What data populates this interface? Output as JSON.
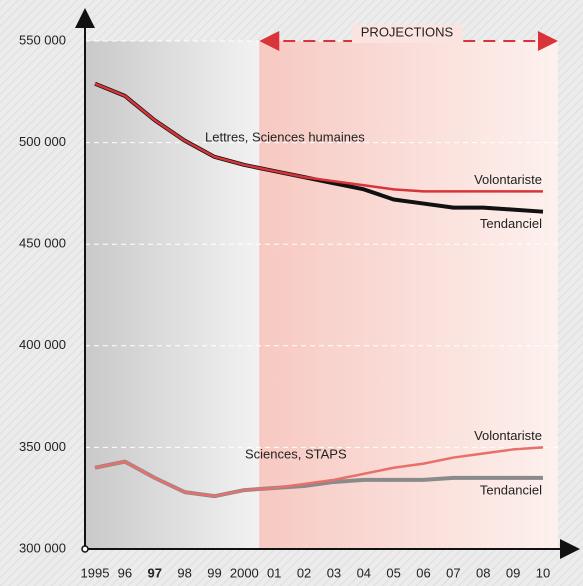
{
  "chart_data": {
    "type": "line",
    "categories": [
      "1995",
      "96",
      "97",
      "98",
      "99",
      "2000",
      "01",
      "02",
      "03",
      "04",
      "05",
      "06",
      "07",
      "08",
      "09",
      "10"
    ],
    "emphasized_category": 2,
    "ylim": [
      300000,
      550000
    ],
    "yticks": [
      {
        "value": 300000,
        "label": "300 000"
      },
      {
        "value": 350000,
        "label": "350 000"
      },
      {
        "value": 400000,
        "label": "400 000"
      },
      {
        "value": 450000,
        "label": "450 000"
      },
      {
        "value": 500000,
        "label": "500 000"
      },
      {
        "value": 550000,
        "label": "550 000"
      }
    ],
    "grid": true,
    "projection_label": "PROJECTIONS",
    "annotations": [
      "Lettres, Sciences humaines",
      "Sciences, STAPS"
    ],
    "series": [
      {
        "name": "Tendanciel",
        "color": "#111111",
        "width": 4,
        "values": [
          529000,
          523000,
          511000,
          501000,
          493000,
          489000,
          486000,
          483000,
          480000,
          477000,
          472000,
          470000,
          468000,
          468000,
          467000,
          466000
        ]
      },
      {
        "name": "Volontariste",
        "color": "#d9343a",
        "width": 2.5,
        "values": [
          529000,
          523000,
          511000,
          501000,
          493000,
          489000,
          486000,
          483000,
          481000,
          479000,
          477000,
          476000,
          476000,
          476000,
          476000,
          476000
        ]
      },
      {
        "name": "Tendanciel",
        "color": "#8a8a8a",
        "width": 4,
        "values": [
          340000,
          343000,
          335000,
          328000,
          326000,
          329000,
          330000,
          331000,
          333000,
          334000,
          334000,
          334000,
          335000,
          335000,
          335000,
          335000
        ]
      },
      {
        "name": "Volontariste",
        "color": "#e8706a",
        "width": 2.5,
        "values": [
          340000,
          343000,
          335000,
          328000,
          326000,
          329000,
          330000,
          332000,
          334000,
          337000,
          340000,
          342000,
          345000,
          347000,
          349000,
          350000
        ]
      }
    ]
  }
}
